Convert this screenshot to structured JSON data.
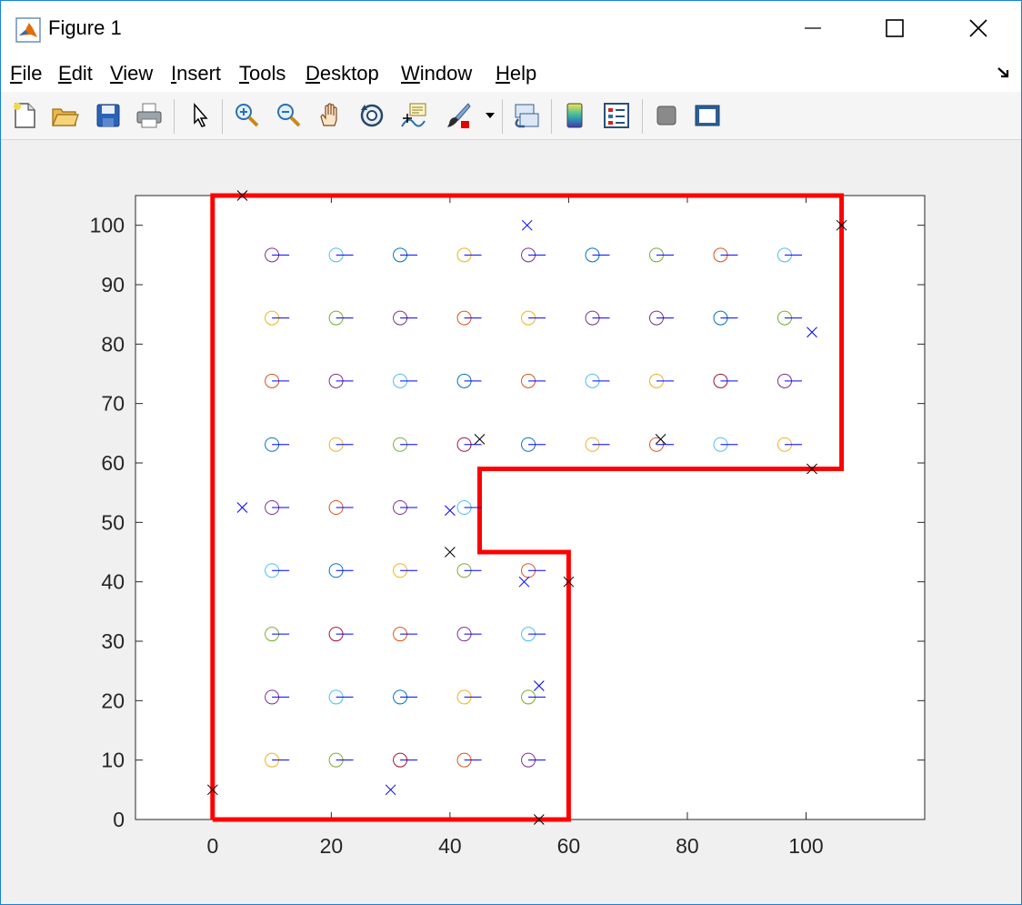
{
  "window": {
    "title": "Figure 1",
    "controls": [
      "minimize",
      "maximize",
      "close"
    ]
  },
  "menu": [
    "File",
    "Edit",
    "View",
    "Insert",
    "Tools",
    "Desktop",
    "Window",
    "Help"
  ],
  "toolbar": [
    "new-figure-icon",
    "open-file-icon",
    "save-icon",
    "print-icon",
    "pointer-icon",
    "zoom-in-icon",
    "zoom-out-icon",
    "pan-icon",
    "rotate-3d-icon",
    "data-cursor-icon",
    "brush-icon",
    "brush-dropdown-icon",
    "link-plot-icon",
    "colorbar-icon",
    "legend-icon",
    "hide-plot-tools-icon",
    "show-plot-tools-icon"
  ],
  "chart_data": {
    "type": "scatter",
    "xlim": [
      -13,
      120
    ],
    "ylim": [
      0,
      105
    ],
    "xticks": [
      0,
      20,
      40,
      60,
      80,
      100
    ],
    "yticks": [
      0,
      10,
      20,
      30,
      40,
      50,
      60,
      70,
      80,
      90,
      100
    ],
    "grid": false,
    "boundary": {
      "color": "#ff0000",
      "points": [
        [
          0,
          0
        ],
        [
          0,
          105
        ],
        [
          106,
          105
        ],
        [
          106,
          59
        ],
        [
          45,
          59
        ],
        [
          45,
          45
        ],
        [
          60,
          45
        ],
        [
          60,
          0
        ],
        [
          0,
          0
        ]
      ]
    },
    "circle_colors": {
      "blue": "#0072bd",
      "orange": "#d95319",
      "yellow": "#edb120",
      "purple": "#7e2f8e",
      "green": "#77ac30",
      "cyan": "#4dbeee",
      "maroon": "#a2142f"
    },
    "circles": [
      {
        "x": 10,
        "y": 95,
        "c": "purple"
      },
      {
        "x": 20.8,
        "y": 95,
        "c": "cyan"
      },
      {
        "x": 31.6,
        "y": 95,
        "c": "blue"
      },
      {
        "x": 42.4,
        "y": 95,
        "c": "yellow"
      },
      {
        "x": 53.2,
        "y": 95,
        "c": "purple"
      },
      {
        "x": 64,
        "y": 95,
        "c": "blue"
      },
      {
        "x": 74.8,
        "y": 95,
        "c": "green"
      },
      {
        "x": 85.6,
        "y": 95,
        "c": "orange"
      },
      {
        "x": 96.4,
        "y": 95,
        "c": "cyan"
      },
      {
        "x": 10,
        "y": 84.4,
        "c": "yellow"
      },
      {
        "x": 20.8,
        "y": 84.4,
        "c": "green"
      },
      {
        "x": 31.6,
        "y": 84.4,
        "c": "purple"
      },
      {
        "x": 42.4,
        "y": 84.4,
        "c": "orange"
      },
      {
        "x": 53.2,
        "y": 84.4,
        "c": "yellow"
      },
      {
        "x": 64,
        "y": 84.4,
        "c": "purple"
      },
      {
        "x": 74.8,
        "y": 84.4,
        "c": "purple"
      },
      {
        "x": 85.6,
        "y": 84.4,
        "c": "blue"
      },
      {
        "x": 96.4,
        "y": 84.4,
        "c": "green"
      },
      {
        "x": 10,
        "y": 73.8,
        "c": "orange"
      },
      {
        "x": 20.8,
        "y": 73.8,
        "c": "purple"
      },
      {
        "x": 31.6,
        "y": 73.8,
        "c": "cyan"
      },
      {
        "x": 42.4,
        "y": 73.8,
        "c": "blue"
      },
      {
        "x": 53.2,
        "y": 73.8,
        "c": "orange"
      },
      {
        "x": 64,
        "y": 73.8,
        "c": "cyan"
      },
      {
        "x": 74.8,
        "y": 73.8,
        "c": "yellow"
      },
      {
        "x": 85.6,
        "y": 73.8,
        "c": "maroon"
      },
      {
        "x": 96.4,
        "y": 73.8,
        "c": "purple"
      },
      {
        "x": 10,
        "y": 63.1,
        "c": "blue"
      },
      {
        "x": 20.8,
        "y": 63.1,
        "c": "yellow"
      },
      {
        "x": 31.6,
        "y": 63.1,
        "c": "green"
      },
      {
        "x": 42.4,
        "y": 63.1,
        "c": "maroon"
      },
      {
        "x": 53.2,
        "y": 63.1,
        "c": "blue"
      },
      {
        "x": 64,
        "y": 63.1,
        "c": "yellow"
      },
      {
        "x": 74.8,
        "y": 63.1,
        "c": "orange"
      },
      {
        "x": 85.6,
        "y": 63.1,
        "c": "cyan"
      },
      {
        "x": 96.4,
        "y": 63.1,
        "c": "yellow"
      },
      {
        "x": 10,
        "y": 52.5,
        "c": "purple"
      },
      {
        "x": 20.8,
        "y": 52.5,
        "c": "orange"
      },
      {
        "x": 31.6,
        "y": 52.5,
        "c": "purple"
      },
      {
        "x": 42.4,
        "y": 52.5,
        "c": "cyan"
      },
      {
        "x": 10,
        "y": 41.9,
        "c": "cyan"
      },
      {
        "x": 20.8,
        "y": 41.9,
        "c": "blue"
      },
      {
        "x": 31.6,
        "y": 41.9,
        "c": "yellow"
      },
      {
        "x": 42.4,
        "y": 41.9,
        "c": "green"
      },
      {
        "x": 53.2,
        "y": 41.9,
        "c": "orange"
      },
      {
        "x": 10,
        "y": 31.2,
        "c": "green"
      },
      {
        "x": 20.8,
        "y": 31.2,
        "c": "maroon"
      },
      {
        "x": 31.6,
        "y": 31.2,
        "c": "orange"
      },
      {
        "x": 42.4,
        "y": 31.2,
        "c": "purple"
      },
      {
        "x": 53.2,
        "y": 31.2,
        "c": "cyan"
      },
      {
        "x": 10,
        "y": 20.6,
        "c": "purple"
      },
      {
        "x": 20.8,
        "y": 20.6,
        "c": "cyan"
      },
      {
        "x": 31.6,
        "y": 20.6,
        "c": "blue"
      },
      {
        "x": 42.4,
        "y": 20.6,
        "c": "yellow"
      },
      {
        "x": 53.2,
        "y": 20.6,
        "c": "green"
      },
      {
        "x": 10,
        "y": 10,
        "c": "yellow"
      },
      {
        "x": 20.8,
        "y": 10,
        "c": "green"
      },
      {
        "x": 31.6,
        "y": 10,
        "c": "maroon"
      },
      {
        "x": 42.4,
        "y": 10,
        "c": "orange"
      },
      {
        "x": 53.2,
        "y": 10,
        "c": "purple"
      }
    ],
    "crosses": [
      {
        "x": 5,
        "y": 105,
        "c": "black"
      },
      {
        "x": 53,
        "y": 100,
        "c": "blue"
      },
      {
        "x": 106,
        "y": 100,
        "c": "black"
      },
      {
        "x": 101,
        "y": 82,
        "c": "blue"
      },
      {
        "x": 45,
        "y": 64,
        "c": "black"
      },
      {
        "x": 75.5,
        "y": 64,
        "c": "black"
      },
      {
        "x": 101,
        "y": 59,
        "c": "black"
      },
      {
        "x": 5,
        "y": 52.5,
        "c": "blue"
      },
      {
        "x": 40,
        "y": 52,
        "c": "blue"
      },
      {
        "x": 40,
        "y": 45,
        "c": "black"
      },
      {
        "x": 52.5,
        "y": 40,
        "c": "blue"
      },
      {
        "x": 60,
        "y": 40,
        "c": "black"
      },
      {
        "x": 55,
        "y": 22.5,
        "c": "blue"
      },
      {
        "x": 0,
        "y": 5,
        "c": "black"
      },
      {
        "x": 30,
        "y": 5,
        "c": "blue"
      },
      {
        "x": 55,
        "y": 0,
        "c": "black"
      }
    ]
  }
}
